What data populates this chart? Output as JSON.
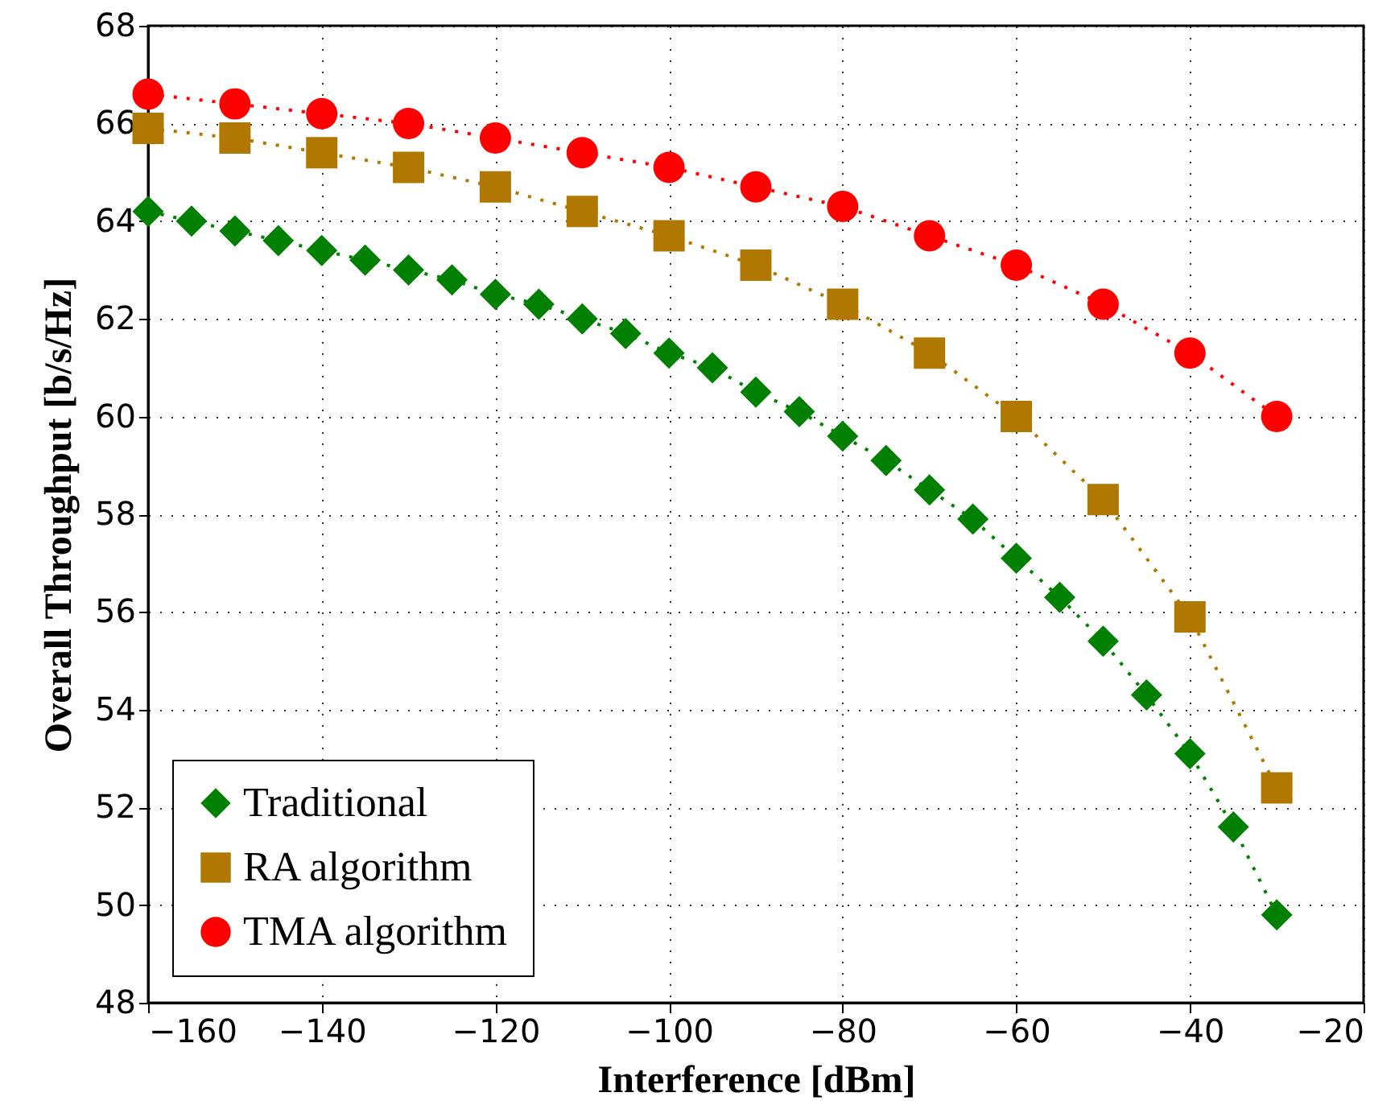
{
  "chart_data": {
    "type": "line",
    "xlabel": "Interference [dBm]",
    "ylabel": "Overall Throughput [b/s/Hz]",
    "xlim": [
      -160,
      -20
    ],
    "xticks": [
      -160,
      -140,
      -120,
      -100,
      -80,
      -60,
      -40,
      -20
    ],
    "ylim": [
      48,
      68
    ],
    "yticks": [
      48,
      50,
      52,
      54,
      56,
      58,
      60,
      62,
      64,
      66,
      68
    ],
    "grid": true,
    "legend": "bottom left",
    "line_style": "dotted",
    "series": [
      {
        "name": "Traditional",
        "color": "#008000",
        "marker": "diamond",
        "x": [
          -160,
          -155,
          -150,
          -145,
          -140,
          -135,
          -130,
          -125,
          -120,
          -115,
          -110,
          -105,
          -100,
          -95,
          -90,
          -85,
          -80,
          -75,
          -70,
          -65,
          -60,
          -55,
          -50,
          -45,
          -40,
          -35,
          -30
        ],
        "values": [
          64.2,
          64.0,
          63.8,
          63.6,
          63.4,
          63.2,
          63.0,
          62.8,
          62.5,
          62.3,
          62.0,
          61.7,
          61.3,
          61.0,
          60.5,
          60.1,
          59.6,
          59.1,
          58.5,
          57.9,
          57.1,
          56.3,
          55.4,
          54.3,
          53.1,
          51.6,
          49.8
        ]
      },
      {
        "name": "RA algorithm",
        "color": "#b07800",
        "marker": "square",
        "x": [
          -160,
          -150,
          -140,
          -130,
          -120,
          -110,
          -100,
          -90,
          -80,
          -70,
          -60,
          -50,
          -40,
          -30
        ],
        "values": [
          65.9,
          65.7,
          65.4,
          65.1,
          64.7,
          64.2,
          63.7,
          63.1,
          62.3,
          61.3,
          60.0,
          58.3,
          55.9,
          52.4
        ]
      },
      {
        "name": "TMA algorithm",
        "color": "#ff0000",
        "marker": "circle",
        "x": [
          -160,
          -150,
          -140,
          -130,
          -120,
          -110,
          -100,
          -90,
          -80,
          -70,
          -60,
          -50,
          -40,
          -30
        ],
        "values": [
          66.6,
          66.4,
          66.2,
          66.0,
          65.7,
          65.4,
          65.1,
          64.7,
          64.3,
          63.7,
          63.1,
          62.3,
          61.3,
          60.0
        ]
      }
    ]
  }
}
